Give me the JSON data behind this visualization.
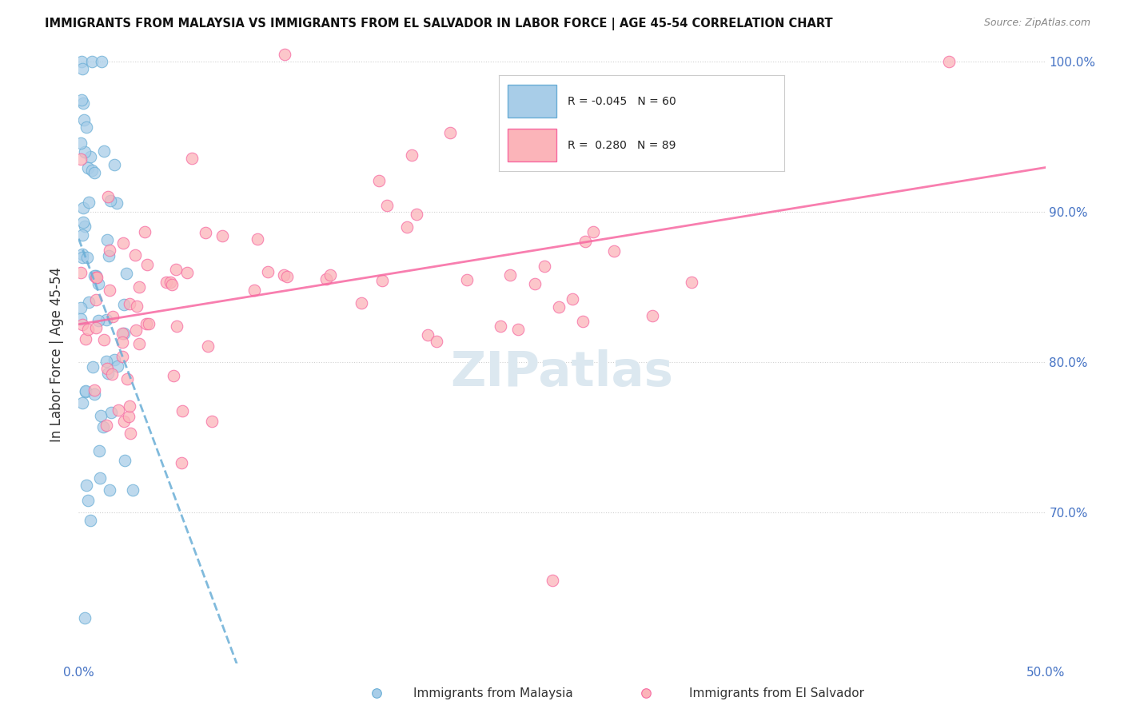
{
  "title": "IMMIGRANTS FROM MALAYSIA VS IMMIGRANTS FROM EL SALVADOR IN LABOR FORCE | AGE 45-54 CORRELATION CHART",
  "source": "Source: ZipAtlas.com",
  "ylabel": "In Labor Force | Age 45-54",
  "x_min": 0.0,
  "x_max": 0.5,
  "y_min": 0.6,
  "y_max": 1.01,
  "malaysia_color": "#a8cde8",
  "malaysia_edge": "#6aaed6",
  "elsalvador_color": "#fbb4b9",
  "elsalvador_edge": "#f768a1",
  "malaysia_R": -0.045,
  "malaysia_N": 60,
  "elsalvador_R": 0.28,
  "elsalvador_N": 89,
  "malaysia_trend_color": "#6aaed6",
  "elsalvador_trend_color": "#f768a1",
  "grid_color": "#d0d0d0",
  "tick_color": "#4472c4",
  "title_color": "#111111",
  "watermark_color": "#dce8f0"
}
